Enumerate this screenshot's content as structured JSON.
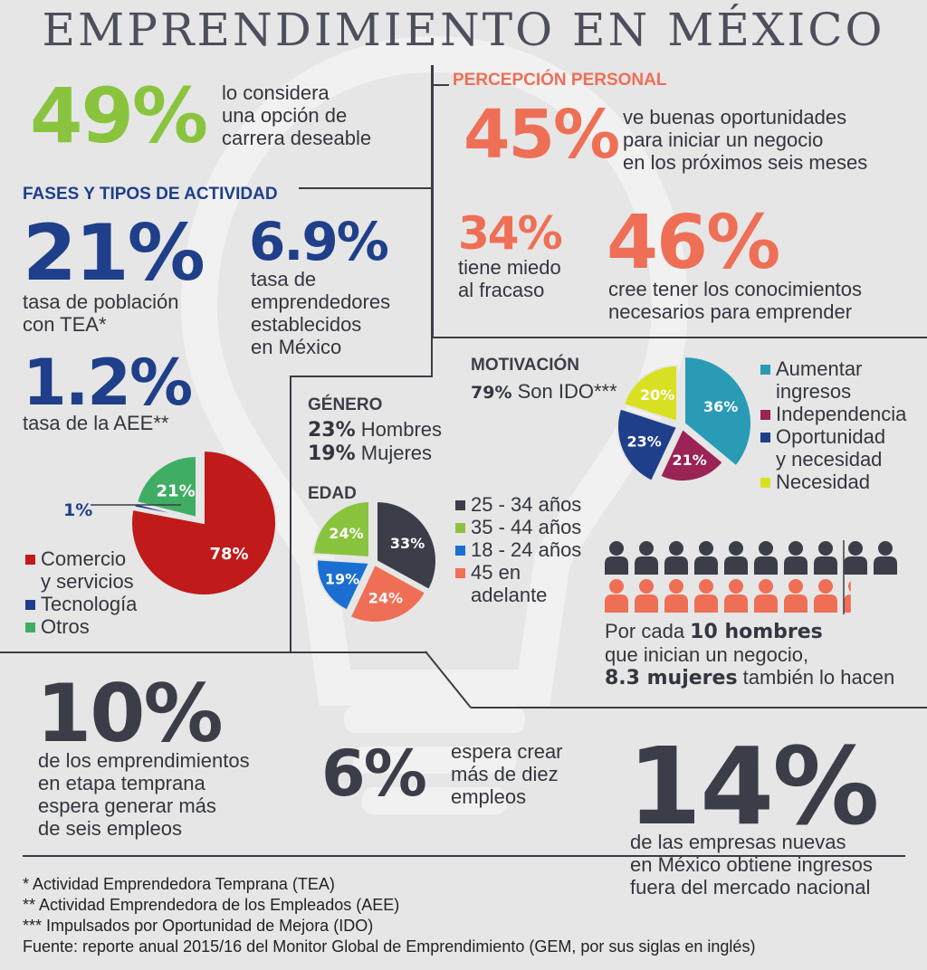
{
  "title": "EMPRENDIMIENTO EN MÉXICO",
  "career": {
    "value": "49%",
    "text": [
      "lo considera",
      "una opción de",
      "carrera deseable"
    ]
  },
  "phases": {
    "heading": "FASES Y TIPOS DE ACTIVIDAD",
    "tea": {
      "value": "21%",
      "text": [
        "tasa de población",
        "con TEA*"
      ]
    },
    "established": {
      "value": "6.9%",
      "text": [
        "tasa de",
        "emprendedores",
        "establecidos",
        "en México"
      ]
    },
    "aee": {
      "value": "1.2%",
      "text": [
        "tasa de la AEE**"
      ]
    }
  },
  "perception": {
    "heading": "PERCEPCIÓN PERSONAL",
    "opportunities": {
      "value": "45%",
      "text": [
        "ve buenas oportunidades",
        "para iniciar un negocio",
        "en los próximos seis meses"
      ]
    },
    "fear": {
      "value": "34%",
      "text": [
        "tiene miedo",
        "al fracaso"
      ]
    },
    "knowledge": {
      "value": "46%",
      "text": [
        "cree tener los conocimientos",
        "necesarios para emprender"
      ]
    }
  },
  "gender": {
    "heading": "GÉNERO",
    "rows": [
      {
        "pct": "23%",
        "label": "Hombres"
      },
      {
        "pct": "19%",
        "label": "Mujeres"
      }
    ]
  },
  "motivation": {
    "heading": "MOTIVACIÓN",
    "pct": "79%",
    "label": "Son IDO***"
  },
  "men_women": {
    "line1_pre": "Por cada ",
    "line1_bold": "10 hombres",
    "line2": "que inician un negocio,",
    "line3_bold": "8.3 mujeres",
    "line3_post": " también lo hacen"
  },
  "jobs6": {
    "value": "10%",
    "text": [
      "de los emprendimientos",
      "en etapa temprana",
      "espera generar más",
      "de seis empleos"
    ]
  },
  "jobs10": {
    "value": "6%",
    "text": [
      "espera crear",
      "más de diez",
      "empleos"
    ]
  },
  "foreign": {
    "value": "14%",
    "text": [
      "de las empresas nuevas",
      "en México obtiene ingresos",
      "fuera del mercado nacional"
    ]
  },
  "footnotes": [
    "* Actividad Emprendedora Temprana (TEA)",
    "** Actividad Emprendedora de los Empleados (AEE)",
    "*** Impulsados por Oportunidad de Mejora (IDO)",
    "Fuente: reporte anual 2015/16 del Monitor Global de Emprendimiento (GEM, por sus siglas en inglés)"
  ],
  "colors": {
    "green": "#8ac43f",
    "navy": "#1f3f8a",
    "salmon": "#ef6f56",
    "dark": "#3b3d49",
    "red": "#c01a1a",
    "teal": "#2a9bb5",
    "maroon": "#9b2355",
    "lime": "#d9e021",
    "blue": "#1a6fd1"
  },
  "chart_data": [
    {
      "type": "pie",
      "categories": [
        "Comercio y servicios",
        "Tecnología",
        "Otros"
      ],
      "values": [
        78,
        1,
        21
      ],
      "labels": [
        "78%",
        "1%",
        "21%"
      ],
      "colors": [
        "#c01a1a",
        "#1f3f8a",
        "#3fae64"
      ],
      "legend": [
        "Comercio\ny servicios",
        "Tecnología",
        "Otros"
      ]
    },
    {
      "type": "pie",
      "title": "EDAD",
      "categories": [
        "25 - 34 años",
        "45 en adelante",
        "18 - 24 años",
        "35 - 44 años"
      ],
      "values": [
        33,
        24,
        19,
        24
      ],
      "labels": [
        "33%",
        "24%",
        "19%",
        "24%"
      ],
      "colors": [
        "#3b3d49",
        "#ef6f56",
        "#1a6fd1",
        "#8ac43f"
      ],
      "legend": [
        {
          "label": "25 - 34 años",
          "color": "#3b3d49"
        },
        {
          "label": "35 - 44 años",
          "color": "#8ac43f"
        },
        {
          "label": "18 - 24 años",
          "color": "#1a6fd1"
        },
        {
          "label": "45 en\nadelante",
          "color": "#ef6f56"
        }
      ]
    },
    {
      "type": "pie",
      "title": "MOTIVACIÓN",
      "categories": [
        "Aumentar ingresos",
        "Independencia",
        "Oportunidad y necesidad",
        "Necesidad"
      ],
      "values": [
        36,
        21,
        23,
        20
      ],
      "labels": [
        "36%",
        "21%",
        "23%",
        "20%"
      ],
      "colors": [
        "#2a9bb5",
        "#9b2355",
        "#1f3f8a",
        "#d9e021"
      ],
      "legend": [
        {
          "label": "Aumentar\ningresos",
          "color": "#2a9bb5"
        },
        {
          "label": "Independencia",
          "color": "#9b2355"
        },
        {
          "label": "Oportunidad\ny necesidad",
          "color": "#1f3f8a"
        },
        {
          "label": "Necesidad",
          "color": "#d9e021"
        }
      ]
    },
    {
      "type": "pictogram",
      "categories": [
        "hombres",
        "mujeres"
      ],
      "values": [
        10,
        8.3
      ]
    }
  ]
}
